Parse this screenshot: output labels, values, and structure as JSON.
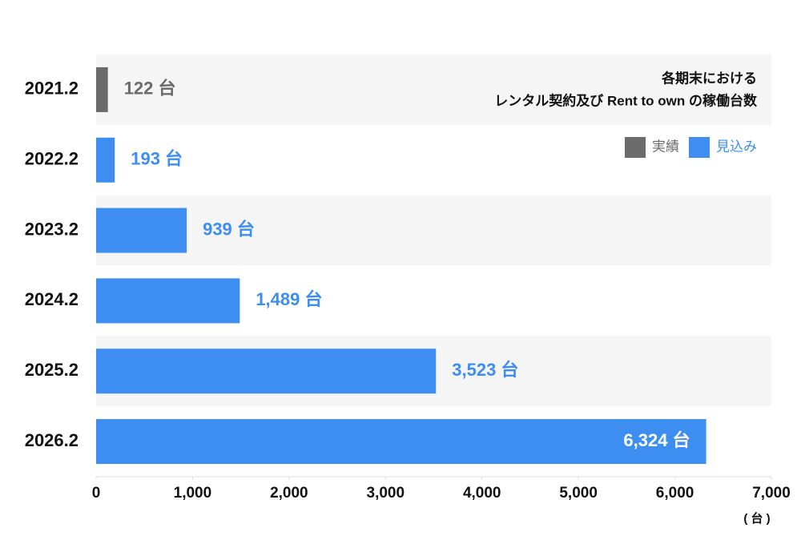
{
  "chart_data": {
    "type": "bar",
    "orientation": "horizontal",
    "title": [
      "各期末における",
      "レンタル契約及び Rent to own の稼働台数"
    ],
    "x_unit": "( 台 )",
    "categories": [
      "2021.2",
      "2022.2",
      "2023.2",
      "2024.2",
      "2025.2",
      "2026.2"
    ],
    "series": [
      {
        "name": "実績",
        "color": "#6b6b6b",
        "values": [
          122,
          null,
          null,
          null,
          null,
          null
        ],
        "value_labels": [
          "122 台",
          null,
          null,
          null,
          null,
          null
        ]
      },
      {
        "name": "見込み",
        "color": "#3d8ef0",
        "values": [
          null,
          193,
          939,
          1489,
          3523,
          6324
        ],
        "value_labels": [
          null,
          "193 台",
          "939 台",
          "1,489 台",
          "3,523 台",
          "6,324 台"
        ]
      }
    ],
    "xlim": [
      0,
      7000
    ],
    "xticks": [
      0,
      {
        "value": 1000,
        "label": "1,000"
      },
      {
        "value": 2000,
        "label": "2,000"
      },
      {
        "value": 3000,
        "label": "3,000"
      },
      {
        "value": 4000,
        "label": "4,000"
      },
      {
        "value": 5000,
        "label": "5,000"
      },
      {
        "value": 6000,
        "label": "6,000"
      },
      {
        "value": 7000,
        "label": "7,000"
      }
    ],
    "legend": "top-right",
    "band_shading": true
  }
}
